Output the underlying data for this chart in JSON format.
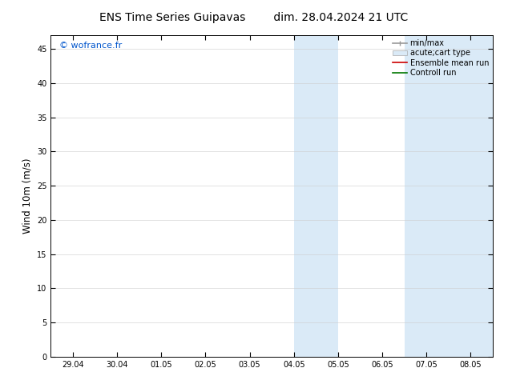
{
  "title_left": "ENS Time Series Guipavas",
  "title_right": "dim. 28.04.2024 21 UTC",
  "ylabel": "Wind 10m (m/s)",
  "ylim": [
    0,
    47
  ],
  "yticks": [
    0,
    5,
    10,
    15,
    20,
    25,
    30,
    35,
    40,
    45
  ],
  "x_labels": [
    "29.04",
    "30.04",
    "01.05",
    "02.05",
    "03.05",
    "04.05",
    "05.05",
    "06.05",
    "07.05",
    "08.05"
  ],
  "x_vals": [
    0,
    1,
    2,
    3,
    4,
    5,
    6,
    7,
    8,
    9
  ],
  "xlim": [
    -0.5,
    9.5
  ],
  "shaded_bands": [
    {
      "x_start": 5.0,
      "x_end": 6.0,
      "color": "#daeaf7"
    },
    {
      "x_start": 7.5,
      "x_end": 9.5,
      "color": "#daeaf7"
    }
  ],
  "legend_entries": [
    {
      "label": "min/max",
      "type": "errorbar",
      "color": "#999999"
    },
    {
      "label": "acute;cart type",
      "type": "patch",
      "color": "#daeaf7"
    },
    {
      "label": "Ensemble mean run",
      "type": "line",
      "color": "#cc0000"
    },
    {
      "label": "Controll run",
      "type": "line",
      "color": "#007700"
    }
  ],
  "watermark_text": "© wofrance.fr",
  "watermark_color": "#0055cc",
  "bg_color": "#ffffff",
  "plot_bg_color": "#ffffff",
  "tick_fontsize": 7,
  "label_fontsize": 8.5,
  "title_fontsize": 10,
  "grid_color": "#cccccc",
  "grid_lw": 0.4
}
